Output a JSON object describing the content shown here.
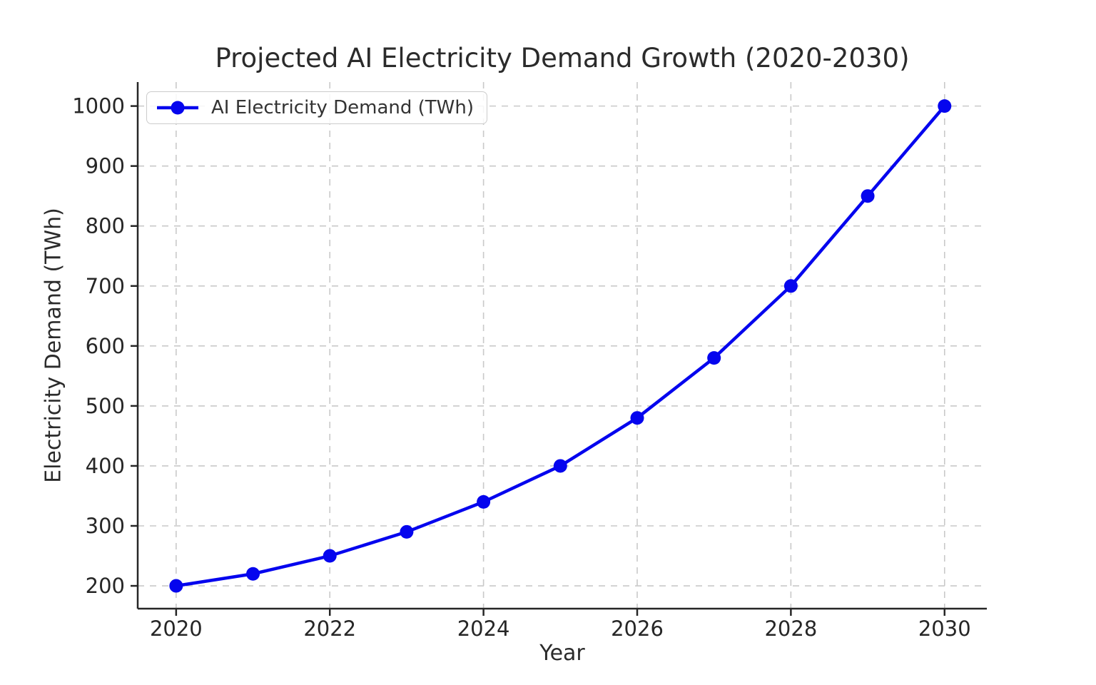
{
  "chart_data": {
    "type": "line",
    "title": "Projected AI Electricity Demand Growth (2020-2030)",
    "xlabel": "Year",
    "ylabel": "Electricity Demand (TWh)",
    "series": [
      {
        "name": "AI Electricity Demand (TWh)",
        "x": [
          2020,
          2021,
          2022,
          2023,
          2024,
          2025,
          2026,
          2027,
          2028,
          2029,
          2030
        ],
        "values": [
          200,
          220,
          250,
          290,
          340,
          400,
          480,
          580,
          700,
          850,
          1000
        ],
        "color": "#0505ee",
        "marker": "circle"
      }
    ],
    "x_ticks": [
      2020,
      2022,
      2024,
      2026,
      2028,
      2030
    ],
    "y_ticks": [
      200,
      300,
      400,
      500,
      600,
      700,
      800,
      900,
      1000
    ],
    "xlim": [
      2019.5,
      2030.55
    ],
    "ylim": [
      162,
      1040
    ],
    "grid": true,
    "grid_color": "#c9c9c9",
    "spine_color": "#262626",
    "legend_position": "upper left"
  }
}
